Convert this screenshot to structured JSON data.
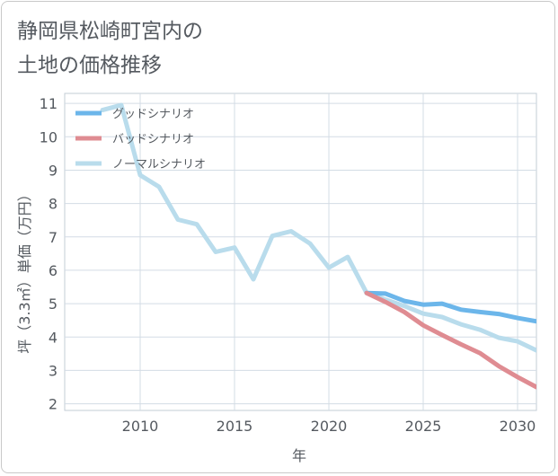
{
  "title": "静岡県松崎町宮内の\n土地の価格推移",
  "chart_data": {
    "type": "line",
    "title": "静岡県松崎町宮内の土地の価格推移",
    "xlabel": "年",
    "ylabel": "坪（3.3㎡）単価（万円）",
    "xlim": [
      2006,
      2031
    ],
    "ylim": [
      1.8,
      11.3
    ],
    "xticks": [
      2010,
      2015,
      2020,
      2025,
      2030
    ],
    "yticks": [
      2,
      3,
      4,
      5,
      6,
      7,
      8,
      9,
      10,
      11
    ],
    "grid": true,
    "legend_position": "top-left",
    "series": [
      {
        "name": "グッドシナリオ",
        "color": "#6cb6ea",
        "x": [
          2022,
          2023,
          2024,
          2025,
          2026,
          2027,
          2028,
          2029,
          2030,
          2031
        ],
        "y": [
          5.32,
          5.3,
          5.08,
          4.97,
          5.0,
          4.82,
          4.75,
          4.69,
          4.57,
          4.47
        ]
      },
      {
        "name": "バッドシナリオ",
        "color": "#df8c92",
        "x": [
          2022,
          2023,
          2024,
          2025,
          2026,
          2027,
          2028,
          2029,
          2030,
          2031
        ],
        "y": [
          5.32,
          5.05,
          4.75,
          4.35,
          4.06,
          3.78,
          3.52,
          3.13,
          2.8,
          2.5
        ]
      },
      {
        "name": "ノーマルシナリオ",
        "color": "#b9dcec",
        "x": [
          2008,
          2009,
          2010,
          2011,
          2012,
          2013,
          2014,
          2015,
          2016,
          2017,
          2018,
          2019,
          2020,
          2021,
          2022,
          2023,
          2024,
          2025,
          2026,
          2027,
          2028,
          2029,
          2030,
          2031
        ],
        "y": [
          10.8,
          10.95,
          8.85,
          8.5,
          7.52,
          7.38,
          6.55,
          6.68,
          5.73,
          7.03,
          7.17,
          6.8,
          6.08,
          6.4,
          5.32,
          5.12,
          4.93,
          4.7,
          4.6,
          4.38,
          4.22,
          3.98,
          3.87,
          3.6
        ]
      }
    ]
  }
}
